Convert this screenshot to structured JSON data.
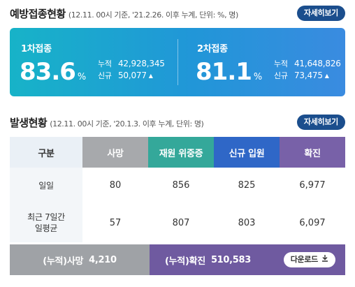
{
  "vaccination": {
    "title": "예방접종현황",
    "subtitle": "(12.11. 00시 기준, '21.2.26. 이후 누계, 단위: %, 명)",
    "detail_label": "자세히보기",
    "first": {
      "label": "1차접종",
      "percent": "83.6",
      "unit": "%",
      "cumulative_label": "누적",
      "cumulative": "42,928,345",
      "new_label": "신규",
      "new": "50,077",
      "trend_icon": "▲"
    },
    "second": {
      "label": "2차접종",
      "percent": "81.1",
      "unit": "%",
      "cumulative_label": "누적",
      "cumulative": "41,648,826",
      "new_label": "신규",
      "new": "73,475",
      "trend_icon": "▲"
    }
  },
  "occurrence": {
    "title": "발생현황",
    "subtitle": "(12.11. 00시 기준, '20.1.3. 이후 누계, 단위: 명)",
    "detail_label": "자세히보기",
    "headers": [
      "구분",
      "사망",
      "재원 위중증",
      "신규 입원",
      "확진"
    ],
    "rows": [
      {
        "label": "일일",
        "values": [
          "80",
          "856",
          "825",
          "6,977"
        ]
      },
      {
        "label_line1": "최근 7일간",
        "label_line2": "일평균",
        "values": [
          "57",
          "807",
          "803",
          "6,097"
        ]
      }
    ],
    "cumulative": {
      "death_label": "(누적)사망",
      "death_value": "4,210",
      "confirmed_label": "(누적)확진",
      "confirmed_value": "510,583",
      "download_label": "다운로드",
      "download_icon": "download-icon"
    }
  },
  "colors": {
    "vaccination_gradient_start": "#17b3c8",
    "vaccination_gradient_end": "#3a8be0",
    "detail_button": "#1b4e8d",
    "death": "#a7a9ac",
    "severe": "#34a89a",
    "admission": "#2f67c7",
    "confirmed": "#7861a8"
  }
}
